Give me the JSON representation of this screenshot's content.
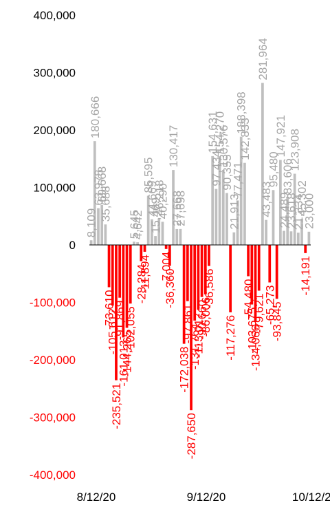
{
  "chart_data": {
    "type": "bar",
    "x_start": "8/12/20",
    "x_ticks": [
      "8/12/20",
      "9/12/20",
      "10/12/20"
    ],
    "ylim": [
      -400000,
      400000
    ],
    "y_ticks": [
      "400,000",
      "300,000",
      "200,000",
      "100,000",
      "0",
      "-100,000",
      "-200,000",
      "-300,000",
      "-400,000"
    ],
    "values": [
      8109,
      180666,
      63978,
      69668,
      35688,
      -73610,
      -105612,
      -235521,
      -91869,
      -161013,
      -144265,
      -102055,
      5645,
      4642,
      -28284,
      -11894,
      85595,
      44669,
      15469,
      46218,
      40290,
      -7004,
      -36360,
      130417,
      27668,
      27698,
      -172038,
      -97861,
      -287650,
      -131764,
      -113017,
      -90660,
      -86006,
      -36586,
      154631,
      97434,
      154270,
      130576,
      90355,
      -117276,
      21913,
      77471,
      188398,
      142833,
      -54480,
      -103675,
      -134066,
      -79621,
      281964,
      43483,
      -65273,
      95480,
      -93845,
      147921,
      24489,
      83606,
      23618,
      123908,
      21334,
      45302,
      -14191,
      23000
    ],
    "colors": {
      "positive": "#bfbfbf",
      "negative": "#ff0000",
      "axis": "#000000",
      "positive_text": "#a6a6a6"
    }
  }
}
